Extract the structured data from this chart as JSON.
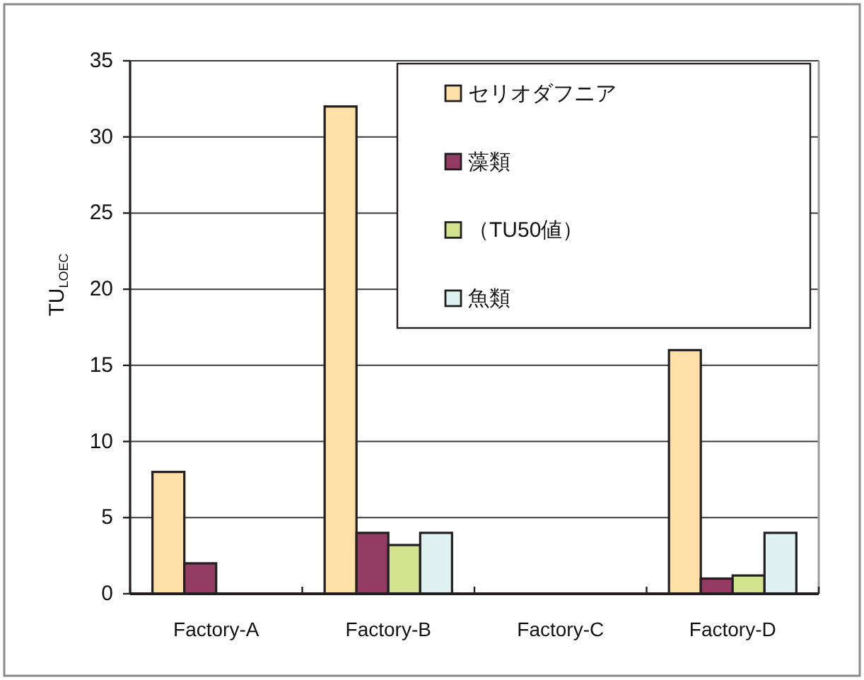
{
  "chart_data": {
    "type": "bar",
    "ylabel": "TU$_{LOEC}$",
    "categories": [
      "Factory-A",
      "Factory-B",
      "Factory-C",
      "Factory-D"
    ],
    "series": [
      {
        "name": "セリオダフニア",
        "color": "#fee0a8",
        "values": [
          8,
          32,
          null,
          16
        ]
      },
      {
        "name": "藻類",
        "color": "#933b62",
        "values": [
          2,
          4,
          null,
          1
        ]
      },
      {
        "name": "（TU50値）",
        "color": "#d4e38e",
        "values": [
          null,
          3.2,
          null,
          1.2
        ]
      },
      {
        "name": "魚類",
        "color": "#e0f1f1",
        "values": [
          null,
          4,
          null,
          4
        ]
      }
    ],
    "ylim": [
      0,
      35
    ],
    "yticks": [
      0,
      5,
      10,
      15,
      20,
      25,
      30,
      35
    ],
    "grid": "y",
    "legend": "top right"
  }
}
